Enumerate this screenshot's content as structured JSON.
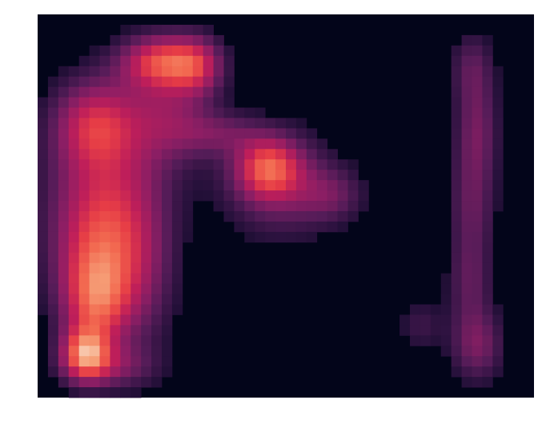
{
  "chart_data": {
    "type": "heatmap",
    "title": "",
    "xlabel": "",
    "ylabel": "",
    "axes_visible": false,
    "colorbar_visible": false,
    "colormap": "rocket",
    "background_color": "#03051a",
    "value_range": [
      0,
      1
    ],
    "grid": {
      "cols": 48,
      "rows": 37
    },
    "density_components": [
      {
        "name": "left-column-lower-peak",
        "cx": 4.6,
        "cy": 32.8,
        "sx": 1.6,
        "sy": 1.8,
        "amp": 0.62
      },
      {
        "name": "left-column-lower-mid",
        "cx": 5.6,
        "cy": 28.0,
        "sx": 2.2,
        "sy": 3.2,
        "amp": 0.45
      },
      {
        "name": "left-column-mid",
        "cx": 5.8,
        "cy": 23.5,
        "sx": 3.0,
        "sy": 4.5,
        "amp": 0.4
      },
      {
        "name": "left-column-trunk",
        "cx": 6.5,
        "cy": 17.0,
        "sx": 4.0,
        "sy": 5.5,
        "amp": 0.36
      },
      {
        "name": "left-column-upper-left",
        "cx": 5.5,
        "cy": 10.5,
        "sx": 2.8,
        "sy": 3.0,
        "amp": 0.42
      },
      {
        "name": "left-column-upper-right",
        "cx": 12.5,
        "cy": 9.5,
        "sx": 3.0,
        "sy": 3.5,
        "amp": 0.3
      },
      {
        "name": "top-hotspot",
        "cx": 12.0,
        "cy": 4.5,
        "sx": 2.8,
        "sy": 1.8,
        "amp": 0.55
      },
      {
        "name": "top-hotspot-right",
        "cx": 15.5,
        "cy": 5.0,
        "sx": 1.8,
        "sy": 2.0,
        "amp": 0.35
      },
      {
        "name": "left-column-right-flank",
        "cx": 10.0,
        "cy": 25.0,
        "sx": 2.5,
        "sy": 6.0,
        "amp": 0.22
      },
      {
        "name": "left-column-base",
        "cx": 7.0,
        "cy": 34.0,
        "sx": 3.0,
        "sy": 1.5,
        "amp": 0.25
      },
      {
        "name": "connector-arm",
        "cx": 17.5,
        "cy": 11.5,
        "sx": 3.0,
        "sy": 1.5,
        "amp": 0.22
      },
      {
        "name": "center-blob-peak",
        "cx": 22.3,
        "cy": 14.8,
        "sx": 2.2,
        "sy": 2.0,
        "amp": 0.5
      },
      {
        "name": "center-blob-body",
        "cx": 23.5,
        "cy": 16.5,
        "sx": 3.8,
        "sy": 3.5,
        "amp": 0.3
      },
      {
        "name": "center-blob-right-lobe",
        "cx": 28.5,
        "cy": 17.5,
        "sx": 2.2,
        "sy": 1.8,
        "amp": 0.2
      },
      {
        "name": "right-strip-top",
        "cx": 42.0,
        "cy": 5.0,
        "sx": 1.5,
        "sy": 2.5,
        "amp": 0.2
      },
      {
        "name": "right-strip-upper",
        "cx": 42.5,
        "cy": 11.0,
        "sx": 1.5,
        "sy": 3.5,
        "amp": 0.26
      },
      {
        "name": "right-strip-middle",
        "cx": 42.0,
        "cy": 18.5,
        "sx": 1.6,
        "sy": 4.0,
        "amp": 0.24
      },
      {
        "name": "right-strip-lower",
        "cx": 41.8,
        "cy": 26.0,
        "sx": 1.5,
        "sy": 3.0,
        "amp": 0.2
      },
      {
        "name": "right-strip-bottom",
        "cx": 42.5,
        "cy": 32.0,
        "sx": 1.8,
        "sy": 2.5,
        "amp": 0.3
      },
      {
        "name": "right-strip-left-tail",
        "cx": 37.0,
        "cy": 30.0,
        "sx": 1.5,
        "sy": 1.8,
        "amp": 0.15
      }
    ],
    "density_threshold": 0.08
  }
}
